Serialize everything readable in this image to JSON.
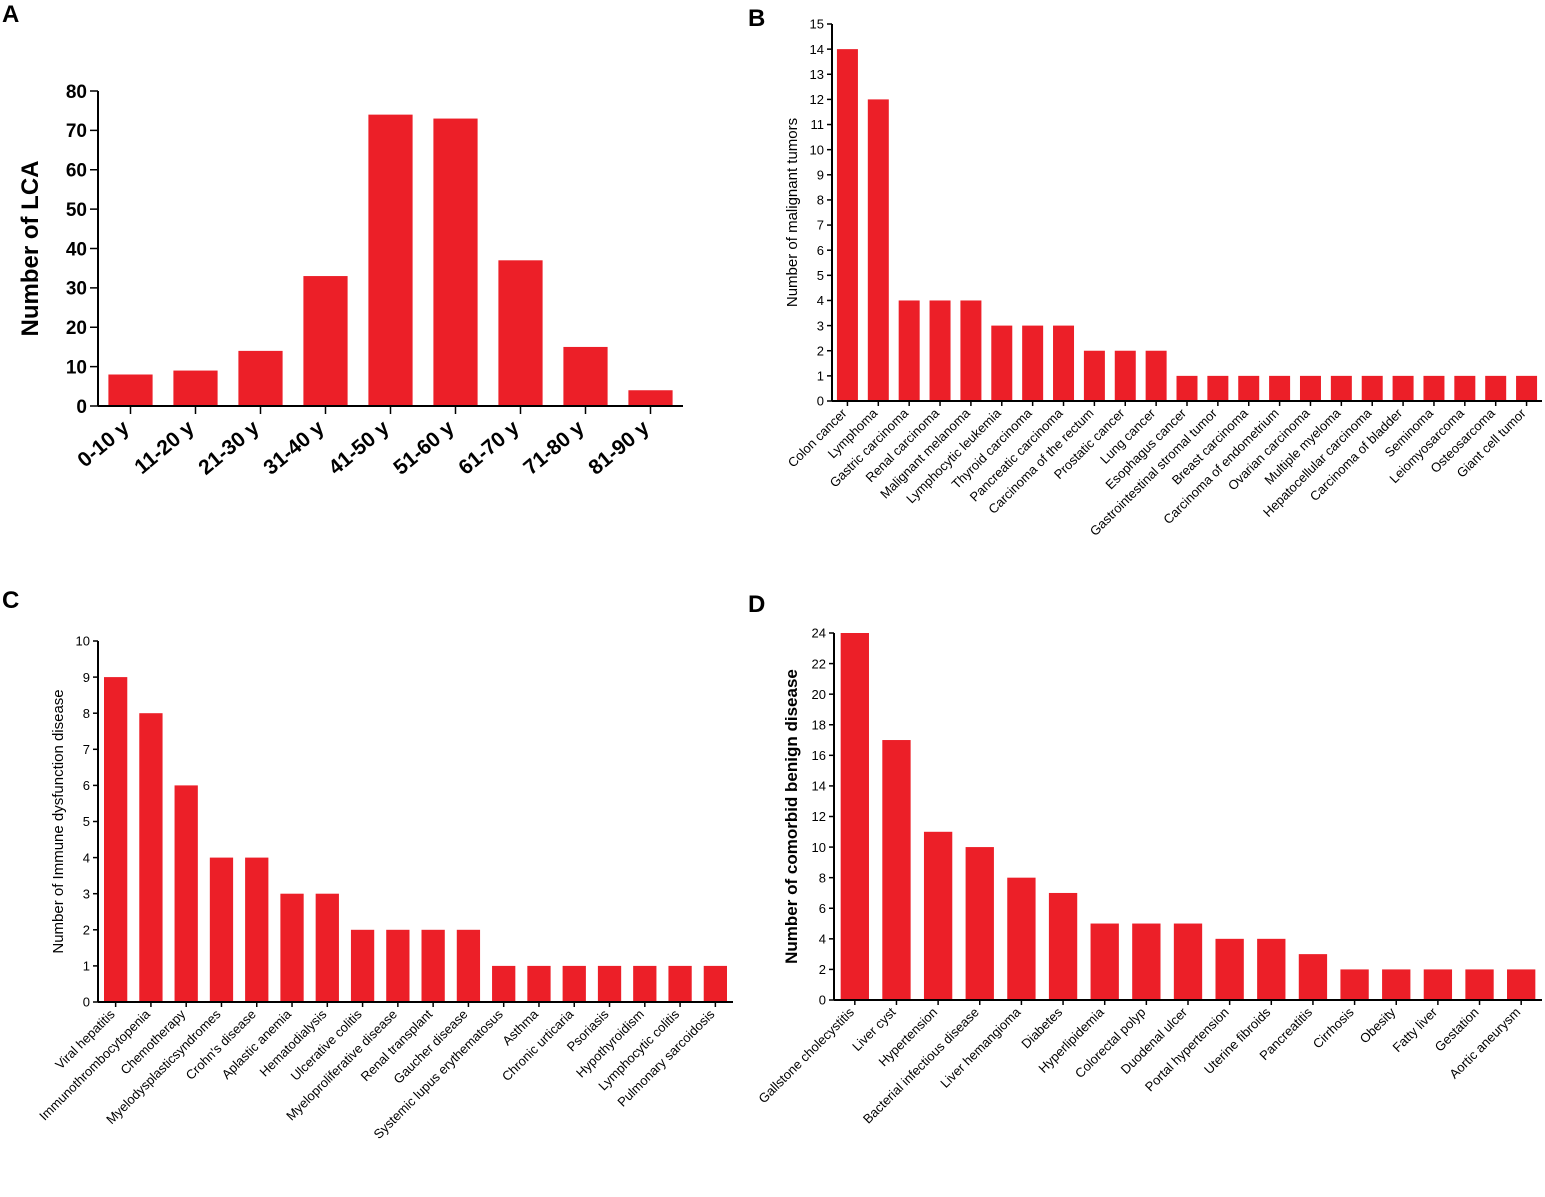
{
  "chart_data": [
    {
      "panel": "A",
      "type": "bar",
      "title": "",
      "xlabel": "",
      "ylabel": "Number of LCA",
      "ylim": [
        0,
        80
      ],
      "yticks": [
        0,
        10,
        20,
        30,
        40,
        50,
        60,
        70,
        80
      ],
      "categories": [
        "0-10 y",
        "11-20 y",
        "21-30 y",
        "31-40 y",
        "41-50 y",
        "51-60 y",
        "61-70 y",
        "71-80 y",
        "81-90 y"
      ],
      "values": [
        8,
        9,
        14,
        33,
        74,
        73,
        37,
        15,
        4
      ],
      "color": "#ec1f28"
    },
    {
      "panel": "B",
      "type": "bar",
      "title": "",
      "xlabel": "",
      "ylabel": "Number of malignant tumors",
      "ylim": [
        0,
        15
      ],
      "yticks": [
        0,
        1,
        2,
        3,
        4,
        5,
        6,
        7,
        8,
        9,
        10,
        11,
        12,
        13,
        14,
        15
      ],
      "categories": [
        "Colon cancer",
        "Lymphoma",
        "Gastric carcinoma",
        "Renal carcinoma",
        "Malignant melanoma",
        "Lymphocytic leukemia",
        "Thyroid  carcinoma",
        "Pancreatic  carcinoma",
        "Carcinoma of the rectum",
        "Prostatic cancer",
        "Lung cancer",
        "Esophagus cancer",
        "Gastrointestinal stromal tumor",
        "Breast carcinoma",
        "Carcinoma of endometrium",
        "Ovarian  carcinoma",
        "Multiple myeloma",
        "Hepatocellular  carcinoma",
        "Carcinoma of bladder",
        "Seminoma",
        "Leiomyosarcoma",
        "Osteosarcoma",
        "Giant cell tumor"
      ],
      "values": [
        14,
        12,
        4,
        4,
        4,
        3,
        3,
        3,
        2,
        2,
        2,
        1,
        1,
        1,
        1,
        1,
        1,
        1,
        1,
        1,
        1,
        1,
        1
      ],
      "color": "#ec1f28"
    },
    {
      "panel": "C",
      "type": "bar",
      "title": "",
      "xlabel": "",
      "ylabel": "Number of Immune dysfunction disease",
      "ylim": [
        0,
        10
      ],
      "yticks": [
        0,
        1,
        2,
        3,
        4,
        5,
        6,
        7,
        8,
        9,
        10
      ],
      "categories": [
        "Viral hepatitis",
        "Immunothrombocytopenia",
        "Chemotherapy",
        "Myelodysplasticsyndromes",
        "Crohn's disease",
        "Aplastic anemia",
        "Hematodialysis",
        "Ulcerative colitis",
        "Myeloproliferative disease",
        "Renal transplant",
        "Gaucher disease",
        "Systemic lupus erythematosus",
        "Asthma",
        "Chronic urticaria",
        "Psoriasis",
        "Hypothyroidism",
        "Lymphocytic colitis",
        "Pulmonary sarcoidosis"
      ],
      "values": [
        9,
        8,
        6,
        4,
        4,
        3,
        3,
        2,
        2,
        2,
        2,
        1,
        1,
        1,
        1,
        1,
        1,
        1
      ],
      "color": "#ec1f28"
    },
    {
      "panel": "D",
      "type": "bar",
      "title": "",
      "xlabel": "",
      "ylabel": "Number of comorbid benign disease",
      "ylim": [
        0,
        24
      ],
      "yticks": [
        0,
        2,
        4,
        6,
        8,
        10,
        12,
        14,
        16,
        18,
        20,
        22,
        24
      ],
      "categories": [
        "Gallstone cholecystitis",
        "Liver cyst",
        "Hypertension",
        "Bacterial infectious disease",
        "Liver hemangioma",
        "Diabetes",
        "Hyperlipidemia",
        "Colorectal polyp",
        "Duodenal ulcer",
        "Portal hypertension",
        "Uterine fibroids",
        "Pancreatitis",
        "Cirrhosis",
        "Obesity",
        "Fatty liver",
        "Gestation",
        "Aortic aneurysm"
      ],
      "values": [
        24,
        17,
        11,
        10,
        8,
        7,
        5,
        5,
        5,
        4,
        4,
        3,
        2,
        2,
        2,
        2,
        2
      ],
      "color": "#ec1f28"
    }
  ]
}
